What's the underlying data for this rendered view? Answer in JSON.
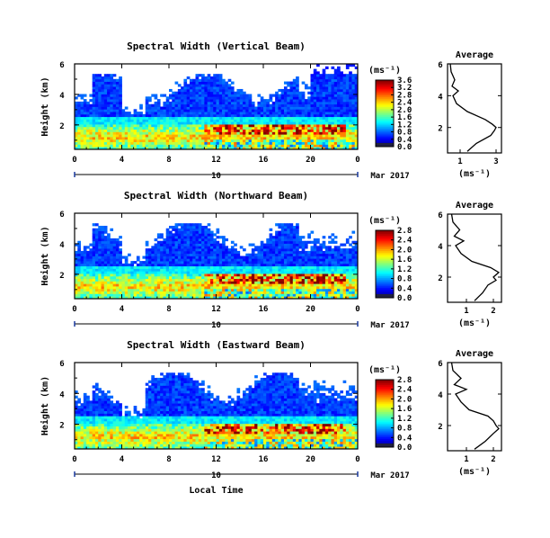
{
  "chart_data": [
    {
      "type": "heatmap",
      "title": "Spectral Width (Vertical Beam)",
      "ylabel": "Height (km)",
      "xlabel": "",
      "x_ticks": [
        "0",
        "4",
        "8",
        "12",
        "16",
        "20",
        "0"
      ],
      "y_ticks": [
        "2",
        "4",
        "6"
      ],
      "x_range": [
        0,
        24
      ],
      "y_range": [
        0.4,
        6
      ],
      "date_label": "10",
      "month_label": "Mar 2017",
      "colorbar": {
        "unit": "(ms⁻¹)",
        "ticks": [
          "0.0",
          "0.4",
          "0.8",
          "1.2",
          "1.6",
          "2.0",
          "2.4",
          "2.8",
          "3.2",
          "3.6"
        ],
        "range": [
          0,
          3.6
        ]
      },
      "average_profile": {
        "title": "Average",
        "xlabel": "(ms⁻¹)",
        "x_ticks": [
          "1",
          "3"
        ],
        "y_ticks": [
          "2",
          "4",
          "6"
        ],
        "x_range": [
          0.3,
          3.3
        ],
        "height": [
          0.5,
          1.0,
          1.5,
          1.8,
          2.0,
          2.2,
          2.5,
          3.0,
          3.5,
          4.0,
          4.3,
          4.6,
          5.0,
          5.5,
          6.0
        ],
        "value": [
          1.4,
          1.9,
          2.7,
          2.9,
          3.0,
          2.8,
          2.4,
          1.4,
          0.8,
          0.6,
          0.9,
          0.55,
          0.7,
          0.5,
          0.45
        ]
      }
    },
    {
      "type": "heatmap",
      "title": "Spectral Width (Northward Beam)",
      "ylabel": "Height (km)",
      "xlabel": "",
      "x_ticks": [
        "0",
        "4",
        "8",
        "12",
        "16",
        "20",
        "0"
      ],
      "y_ticks": [
        "2",
        "4",
        "6"
      ],
      "x_range": [
        0,
        24
      ],
      "y_range": [
        0.4,
        6
      ],
      "date_label": "10",
      "month_label": "Mar 2017",
      "colorbar": {
        "unit": "(ms⁻¹)",
        "ticks": [
          "0.0",
          "0.4",
          "0.8",
          "1.2",
          "1.6",
          "2.0",
          "2.4",
          "2.8"
        ],
        "range": [
          0,
          2.8
        ]
      },
      "average_profile": {
        "title": "Average",
        "xlabel": "(ms⁻¹)",
        "x_ticks": [
          "1",
          "2"
        ],
        "y_ticks": [
          "2",
          "4",
          "6"
        ],
        "x_range": [
          0.3,
          2.3
        ],
        "height": [
          0.5,
          1.0,
          1.5,
          1.8,
          2.0,
          2.3,
          2.6,
          3.0,
          3.5,
          4.0,
          4.3,
          4.6,
          5.0,
          5.5,
          6.0
        ],
        "value": [
          1.3,
          1.6,
          1.8,
          2.1,
          2.0,
          2.2,
          1.9,
          1.2,
          0.8,
          0.6,
          0.9,
          0.55,
          0.75,
          0.5,
          0.45
        ]
      }
    },
    {
      "type": "heatmap",
      "title": "Spectral Width (Eastward Beam)",
      "ylabel": "Height (km)",
      "xlabel": "Local Time",
      "x_ticks": [
        "0",
        "4",
        "8",
        "12",
        "16",
        "20",
        "0"
      ],
      "y_ticks": [
        "2",
        "4",
        "6"
      ],
      "x_range": [
        0,
        24
      ],
      "y_range": [
        0.4,
        6
      ],
      "date_label": "10",
      "month_label": "Mar 2017",
      "colorbar": {
        "unit": "(ms⁻¹)",
        "ticks": [
          "0.0",
          "0.4",
          "0.8",
          "1.2",
          "1.6",
          "2.0",
          "2.4",
          "2.8"
        ],
        "range": [
          0,
          2.8
        ]
      },
      "average_profile": {
        "title": "Average",
        "xlabel": "(ms⁻¹)",
        "x_ticks": [
          "1",
          "2"
        ],
        "y_ticks": [
          "2",
          "4",
          "6"
        ],
        "x_range": [
          0.3,
          2.3
        ],
        "height": [
          0.5,
          1.0,
          1.5,
          1.8,
          2.0,
          2.3,
          2.6,
          3.0,
          3.5,
          4.0,
          4.3,
          4.6,
          5.0,
          5.5,
          6.0
        ],
        "value": [
          1.3,
          1.7,
          2.0,
          2.2,
          2.1,
          2.0,
          1.8,
          1.1,
          0.8,
          0.6,
          1.0,
          0.55,
          0.8,
          0.5,
          0.45
        ]
      }
    }
  ]
}
